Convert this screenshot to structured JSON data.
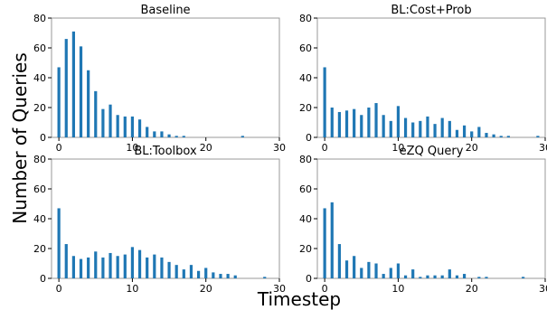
{
  "figure": {
    "xlabel": "Timestep",
    "ylabel": "Number of Queries"
  },
  "chart_data": [
    {
      "type": "bar",
      "title": "Baseline",
      "x": [
        0,
        1,
        2,
        3,
        4,
        5,
        6,
        7,
        8,
        9,
        10,
        11,
        12,
        13,
        14,
        15,
        16,
        17,
        18,
        19,
        20,
        21,
        22,
        23,
        24,
        25,
        26,
        27,
        28,
        29
      ],
      "values": [
        47,
        66,
        71,
        61,
        45,
        31,
        19,
        22,
        15,
        14,
        14,
        12,
        7,
        4,
        4,
        2,
        1,
        1,
        0,
        0,
        0,
        0,
        0,
        0,
        0,
        1,
        0,
        0,
        0,
        0
      ],
      "xlim": [
        -1,
        30
      ],
      "ylim": [
        0,
        80
      ],
      "xticks": [
        0,
        10,
        20,
        30
      ],
      "yticks": [
        0,
        20,
        40,
        60,
        80
      ],
      "color": "#1f77b4",
      "grid": false
    },
    {
      "type": "bar",
      "title": "BL:Cost+Prob",
      "x": [
        0,
        1,
        2,
        3,
        4,
        5,
        6,
        7,
        8,
        9,
        10,
        11,
        12,
        13,
        14,
        15,
        16,
        17,
        18,
        19,
        20,
        21,
        22,
        23,
        24,
        25,
        26,
        27,
        28,
        29
      ],
      "values": [
        47,
        20,
        17,
        18,
        19,
        15,
        20,
        23,
        15,
        11,
        21,
        13,
        10,
        11,
        14,
        9,
        13,
        11,
        5,
        8,
        4,
        7,
        3,
        2,
        1,
        1,
        0,
        0,
        0,
        1
      ],
      "xlim": [
        -1,
        30
      ],
      "ylim": [
        0,
        80
      ],
      "xticks": [
        0,
        10,
        20,
        30
      ],
      "yticks": [
        0,
        20,
        40,
        60,
        80
      ],
      "color": "#1f77b4",
      "grid": false
    },
    {
      "type": "bar",
      "title": "BL:Toolbox",
      "x": [
        0,
        1,
        2,
        3,
        4,
        5,
        6,
        7,
        8,
        9,
        10,
        11,
        12,
        13,
        14,
        15,
        16,
        17,
        18,
        19,
        20,
        21,
        22,
        23,
        24,
        25,
        26,
        27,
        28,
        29
      ],
      "values": [
        47,
        23,
        15,
        13,
        14,
        18,
        14,
        17,
        15,
        16,
        21,
        19,
        14,
        16,
        14,
        11,
        9,
        6,
        9,
        5,
        7,
        4,
        3,
        3,
        2,
        0,
        0,
        0,
        1,
        0
      ],
      "xlim": [
        -1,
        30
      ],
      "ylim": [
        0,
        80
      ],
      "xticks": [
        0,
        10,
        20,
        30
      ],
      "yticks": [
        0,
        20,
        40,
        60,
        80
      ],
      "color": "#1f77b4",
      "grid": false
    },
    {
      "type": "bar",
      "title": "eZQ Query",
      "x": [
        0,
        1,
        2,
        3,
        4,
        5,
        6,
        7,
        8,
        9,
        10,
        11,
        12,
        13,
        14,
        15,
        16,
        17,
        18,
        19,
        20,
        21,
        22,
        23,
        24,
        25,
        26,
        27,
        28,
        29
      ],
      "values": [
        47,
        51,
        23,
        12,
        15,
        7,
        11,
        10,
        3,
        7,
        10,
        2,
        6,
        1,
        2,
        2,
        2,
        6,
        2,
        3,
        0,
        1,
        1,
        0,
        0,
        0,
        0,
        1,
        0,
        0
      ],
      "xlim": [
        -1,
        30
      ],
      "ylim": [
        0,
        80
      ],
      "xticks": [
        0,
        10,
        20,
        30
      ],
      "yticks": [
        0,
        20,
        40,
        60,
        80
      ],
      "color": "#1f77b4",
      "grid": false
    }
  ]
}
